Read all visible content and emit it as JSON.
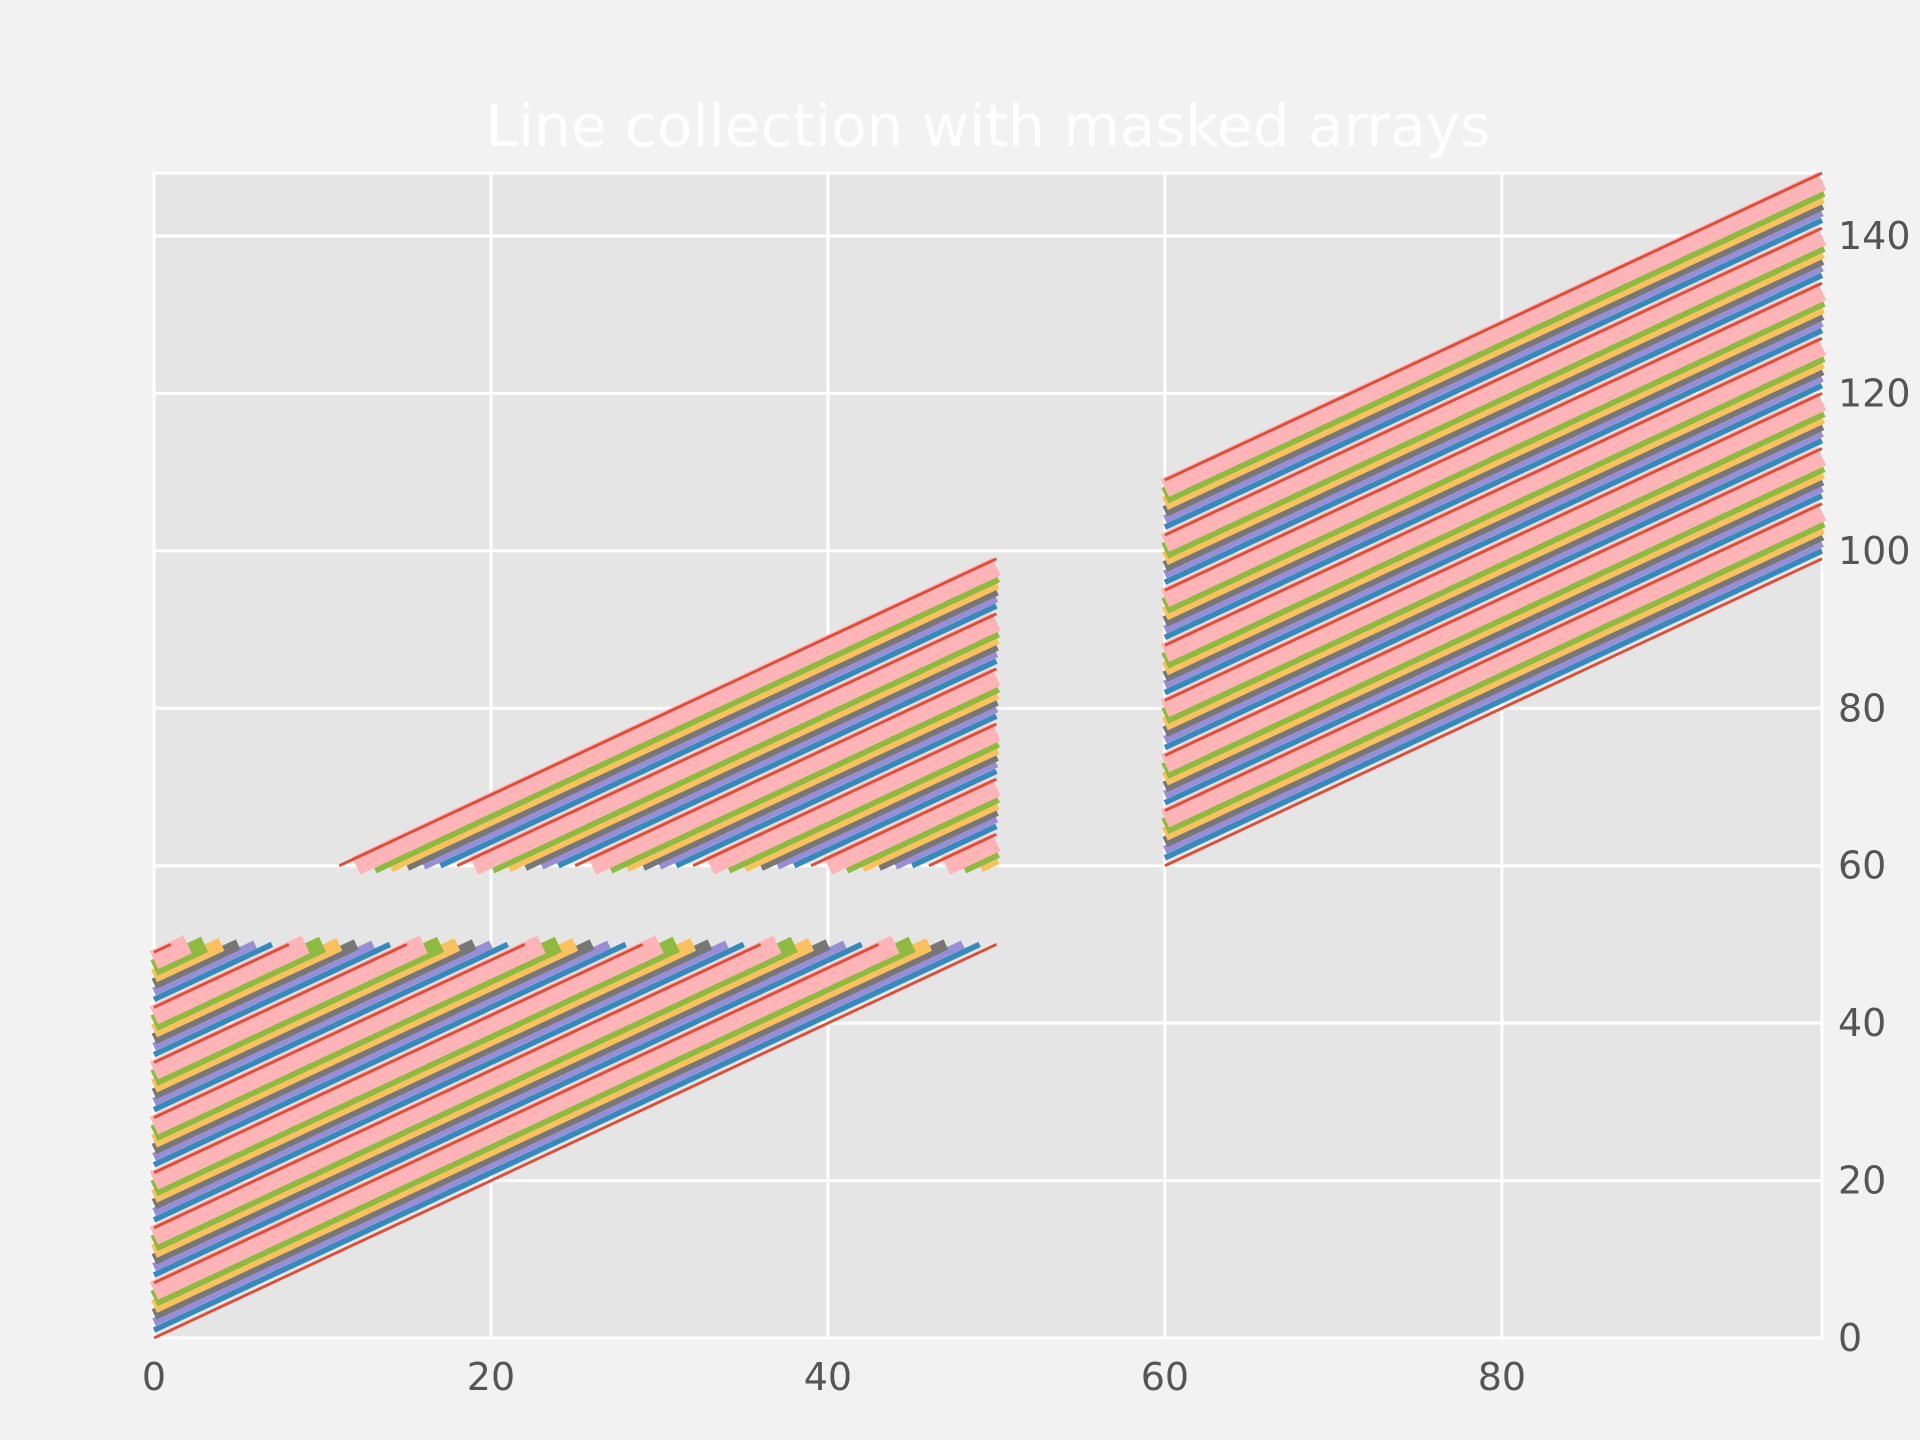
{
  "chart_data": {
    "type": "line",
    "title": "Line collection with masked arrays",
    "xlabel": "",
    "ylabel": "",
    "xlim": [
      0,
      99
    ],
    "ylim": [
      0,
      148
    ],
    "grid": true,
    "y_axis_side": "right",
    "x_ticks": [
      "0",
      "20",
      "40",
      "60",
      "80"
    ],
    "y_ticks": [
      "0",
      "20",
      "40",
      "60",
      "80",
      "100",
      "120",
      "140"
    ],
    "line_count": 50,
    "x_values": "integers 0 to 99, one point per unit",
    "line_definition": "line i has y = x + i for i = 0..49",
    "masked_values": "points with 50 < y < 60 are masked (not drawn)",
    "masked_x_range": [
      51,
      59
    ],
    "linewidths_pattern": [
      1,
      2,
      3,
      4,
      5,
      6,
      7
    ],
    "colors": [
      "#E24A33",
      "#348ABD",
      "#988ED5",
      "#777777",
      "#FBC15E",
      "#8EBA42",
      "#FFB5B8"
    ],
    "background_color": "#E5E5E5",
    "grid_color": "#ffffff",
    "page_color": "#F2F2F2"
  }
}
